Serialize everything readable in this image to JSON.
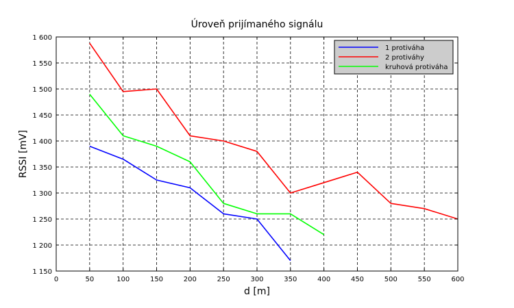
{
  "chart_data": {
    "type": "line",
    "title": "Úroveň prijímaného signálu",
    "xlabel": "d [m]",
    "ylabel": "RSSI [mV]",
    "xlim": [
      0,
      600
    ],
    "ylim": [
      1150,
      1600
    ],
    "xticks": [
      0,
      50,
      100,
      150,
      200,
      250,
      300,
      350,
      400,
      450,
      500,
      550,
      600
    ],
    "yticks": [
      1150,
      1200,
      1250,
      1300,
      1350,
      1400,
      1450,
      1500,
      1550,
      1600
    ],
    "xtick_labels": [
      "0",
      "50",
      "100",
      "150",
      "200",
      "250",
      "300",
      "350",
      "400",
      "450",
      "500",
      "550",
      "600"
    ],
    "ytick_labels": [
      "1 150",
      "1 200",
      "1 250",
      "1 300",
      "1 350",
      "1 400",
      "1 450",
      "1 500",
      "1 550",
      "1 600"
    ],
    "grid": true,
    "legend_position": "top-right",
    "series": [
      {
        "name": "1 protiváha",
        "color": "#0000ff",
        "x": [
          50,
          100,
          150,
          200,
          250,
          300,
          350
        ],
        "values": [
          1390,
          1365,
          1325,
          1310,
          1260,
          1250,
          1170
        ]
      },
      {
        "name": "2 protiváhy",
        "color": "#ff0000",
        "x": [
          50,
          100,
          150,
          200,
          250,
          300,
          350,
          400,
          450,
          500,
          550,
          600
        ],
        "values": [
          1588,
          1495,
          1500,
          1410,
          1400,
          1380,
          1300,
          1320,
          1340,
          1280,
          1270,
          1250
        ]
      },
      {
        "name": "kruhová protiváha",
        "color": "#00ff00",
        "x": [
          50,
          100,
          150,
          200,
          250,
          300,
          350,
          400
        ],
        "values": [
          1490,
          1410,
          1390,
          1360,
          1280,
          1260,
          1260,
          1220
        ]
      }
    ]
  }
}
